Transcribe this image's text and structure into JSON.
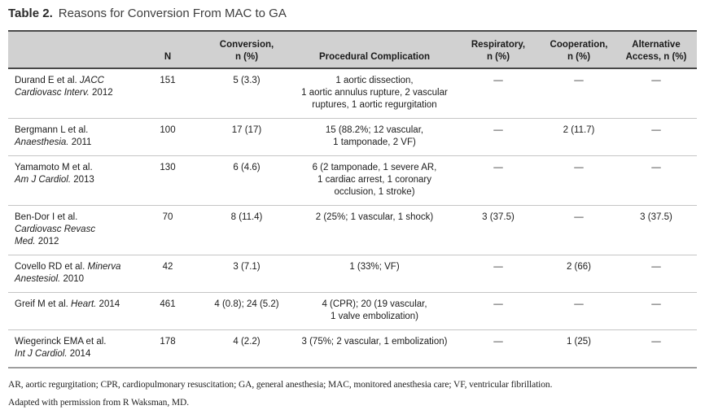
{
  "title": {
    "label": "Table 2.",
    "text": "Reasons for Conversion From MAC to GA"
  },
  "colors": {
    "header_bg": "#d1d1d1"
  },
  "table": {
    "headers": {
      "study": "",
      "n": [
        "N"
      ],
      "conversion": [
        "Conversion,",
        "n (%)"
      ],
      "procedural": [
        "Procedural Complication"
      ],
      "respiratory": [
        "Respiratory,",
        "n (%)"
      ],
      "cooperation": [
        "Cooperation,",
        "n (%)"
      ],
      "alternative": [
        "Alternative",
        "Access, n (%)"
      ]
    },
    "rows": [
      {
        "study": [
          [
            {
              "t": "Durand E et al. "
            },
            {
              "t": "JACC",
              "i": true
            }
          ],
          [
            {
              "t": "Cardiovasc Interv.",
              "i": true
            },
            {
              "t": " 2012"
            }
          ]
        ],
        "n": "151",
        "conversion": "5 (3.3)",
        "procedural": [
          "1 aortic dissection,",
          "1 aortic annulus rupture, 2 vascular",
          "ruptures, 1 aortic regurgitation"
        ],
        "respiratory": "—",
        "cooperation": "—",
        "alternative": "—"
      },
      {
        "study": [
          [
            {
              "t": "Bergmann L et al."
            }
          ],
          [
            {
              "t": "Anaesthesia.",
              "i": true
            },
            {
              "t": " 2011"
            }
          ]
        ],
        "n": "100",
        "conversion": "17 (17)",
        "procedural": [
          "15 (88.2%; 12 vascular,",
          "1 tamponade, 2 VF)"
        ],
        "respiratory": "—",
        "cooperation": "2 (11.7)",
        "alternative": "—"
      },
      {
        "study": [
          [
            {
              "t": "Yamamoto M et al."
            }
          ],
          [
            {
              "t": "Am J Cardiol.",
              "i": true
            },
            {
              "t": " 2013"
            }
          ]
        ],
        "n": "130",
        "conversion": "6 (4.6)",
        "procedural": [
          "6 (2 tamponade, 1 severe AR,",
          "1 cardiac arrest, 1 coronary",
          "occlusion, 1 stroke)"
        ],
        "respiratory": "—",
        "cooperation": "—",
        "alternative": "—"
      },
      {
        "study": [
          [
            {
              "t": "Ben-Dor I et al."
            }
          ],
          [
            {
              "t": "Cardiovasc Revasc",
              "i": true
            }
          ],
          [
            {
              "t": "Med.",
              "i": true
            },
            {
              "t": " 2012"
            }
          ]
        ],
        "n": "70",
        "conversion": "8 (11.4)",
        "procedural": [
          "2 (25%; 1 vascular, 1 shock)"
        ],
        "respiratory": "3 (37.5)",
        "cooperation": "—",
        "alternative": "3 (37.5)"
      },
      {
        "study": [
          [
            {
              "t": "Covello RD et al. "
            },
            {
              "t": "Minerva",
              "i": true
            }
          ],
          [
            {
              "t": "Anestesiol.",
              "i": true
            },
            {
              "t": " 2010"
            }
          ]
        ],
        "n": "42",
        "conversion": "3 (7.1)",
        "procedural": [
          "1 (33%; VF)"
        ],
        "respiratory": "—",
        "cooperation": "2 (66)",
        "alternative": "—"
      },
      {
        "study": [
          [
            {
              "t": "Greif M et al. "
            },
            {
              "t": "Heart.",
              "i": true
            },
            {
              "t": " 2014"
            }
          ]
        ],
        "n": "461",
        "conversion": "4 (0.8); 24 (5.2)",
        "procedural": [
          "4 (CPR); 20 (19 vascular,",
          "1 valve embolization)"
        ],
        "respiratory": "—",
        "cooperation": "—",
        "alternative": "—"
      },
      {
        "study": [
          [
            {
              "t": "Wiegerinck EMA et al."
            }
          ],
          [
            {
              "t": "Int J Cardiol.",
              "i": true
            },
            {
              "t": " 2014"
            }
          ]
        ],
        "n": "178",
        "conversion": "4 (2.2)",
        "procedural": [
          "3 (75%; 2 vascular, 1 embolization)"
        ],
        "respiratory": "—",
        "cooperation": "1 (25)",
        "alternative": "—"
      }
    ]
  },
  "footnotes": [
    "AR, aortic regurgitation; CPR, cardiopulmonary resuscitation; GA, general anesthesia; MAC, monitored anesthesia care; VF, ventricular fibrillation.",
    "Adapted with permission from R Waksman, MD."
  ]
}
